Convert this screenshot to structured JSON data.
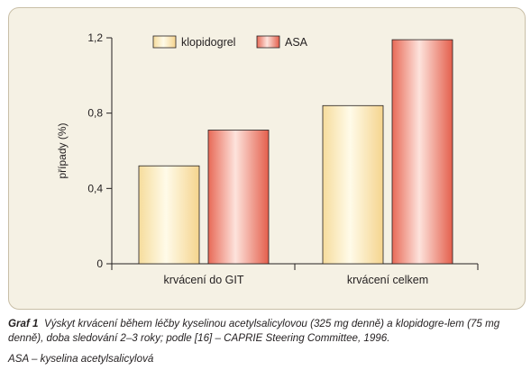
{
  "chart_data": {
    "type": "bar",
    "categories": [
      "krvácení do GIT",
      "krvácení celkem"
    ],
    "series": [
      {
        "name": "klopidogrel",
        "values": [
          0.52,
          0.84
        ]
      },
      {
        "name": "ASA",
        "values": [
          0.71,
          1.19
        ]
      }
    ],
    "ylabel": "případy (%)",
    "xlabel": "",
    "ylim": [
      0,
      1.2
    ],
    "yticks": [
      "0",
      "0,4",
      "0,8",
      "1,2"
    ],
    "legend_position": "top",
    "grid": false
  },
  "colors": {
    "klopidogrel_light": "#fffbe9",
    "klopidogrel_dark": "#f6dc9c",
    "asa_light": "#fde3dc",
    "asa_dark": "#e86a57",
    "panel_bg": "#f5f1e4"
  },
  "caption": {
    "label": "Graf 1",
    "text": "Výskyt krvácení během léčby kyselinou acetylsalicylovou (325 mg denně) a klopidogre-lem (75 mg denně), doba sledování 2–3 roky; podle [16] – CAPRIE Steering Committee, 1996.",
    "note": "ASA – kyselina acetylsalicylová"
  }
}
